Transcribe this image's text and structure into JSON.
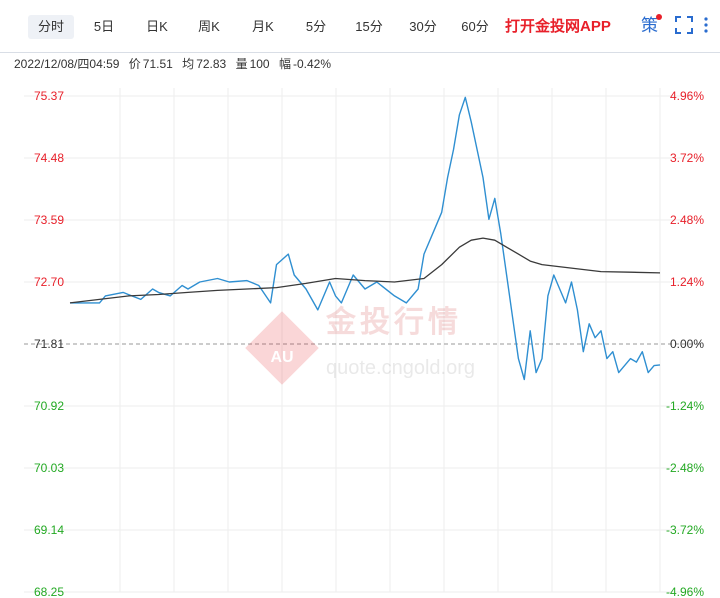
{
  "toolbar": {
    "tabs": [
      {
        "label": "分时",
        "active": true
      },
      {
        "label": "5日",
        "active": false
      },
      {
        "label": "日K",
        "active": false
      },
      {
        "label": "周K",
        "active": false
      },
      {
        "label": "月K",
        "active": false
      },
      {
        "label": "5分",
        "active": false
      },
      {
        "label": "15分",
        "active": false
      },
      {
        "label": "30分",
        "active": false
      },
      {
        "label": "60分",
        "active": false
      }
    ],
    "promo_label": "打开金投网APP",
    "strategy_icon_glyph": "策",
    "icons": [
      "strategy-icon",
      "fullscreen-icon",
      "more-icon"
    ],
    "accent_color": "#2a6ccf",
    "promo_color": "#e8202a"
  },
  "info_bar": {
    "datetime": "2022/12/08/四04:59",
    "price_label": "价",
    "price": "71.51",
    "avg_label": "均",
    "avg": "72.83",
    "volume_label": "量",
    "volume": "100",
    "change_label": "幅",
    "change": "-0.42%"
  },
  "watermark": {
    "brand": "金投行情",
    "url": "quote.cngold.org",
    "logo_text": "AU"
  },
  "chart_data": {
    "type": "line",
    "title": "",
    "left_axis_ticks": [
      "75.37",
      "74.48",
      "73.59",
      "72.70",
      "71.81",
      "70.92",
      "70.03",
      "69.14",
      "68.25"
    ],
    "right_axis_ticks": [
      "4.96%",
      "3.72%",
      "2.48%",
      "1.24%",
      "0.00%",
      "-1.24%",
      "-2.48%",
      "-3.72%",
      "-4.96%"
    ],
    "ylim": [
      68.25,
      75.37
    ],
    "reference_price": 71.81,
    "up_color": "#e8202a",
    "down_color": "#23a923",
    "series": [
      {
        "role": "price",
        "color": "#2f8fd1",
        "x": [
          0,
          0.05,
          0.06,
          0.09,
          0.12,
          0.14,
          0.15,
          0.17,
          0.19,
          0.2,
          0.22,
          0.25,
          0.27,
          0.3,
          0.32,
          0.34,
          0.35,
          0.37,
          0.38,
          0.4,
          0.42,
          0.44,
          0.45,
          0.46,
          0.48,
          0.5,
          0.52,
          0.55,
          0.57,
          0.59,
          0.6,
          0.62,
          0.63,
          0.64,
          0.65,
          0.66,
          0.67,
          0.68,
          0.69,
          0.7,
          0.71,
          0.72,
          0.73,
          0.74,
          0.75,
          0.76,
          0.77,
          0.78,
          0.79,
          0.8,
          0.81,
          0.82,
          0.83,
          0.84,
          0.85,
          0.86,
          0.87,
          0.88,
          0.89,
          0.9,
          0.91,
          0.92,
          0.93,
          0.94,
          0.95,
          0.96,
          0.97,
          0.98,
          0.99,
          1.0
        ],
        "values": [
          72.4,
          72.4,
          72.5,
          72.55,
          72.45,
          72.6,
          72.55,
          72.5,
          72.65,
          72.6,
          72.7,
          72.75,
          72.7,
          72.72,
          72.65,
          72.4,
          72.95,
          73.1,
          72.8,
          72.6,
          72.3,
          72.7,
          72.5,
          72.4,
          72.8,
          72.6,
          72.7,
          72.5,
          72.4,
          72.6,
          73.1,
          73.5,
          73.7,
          74.2,
          74.6,
          75.1,
          75.35,
          75.0,
          74.6,
          74.2,
          73.6,
          73.9,
          73.4,
          72.8,
          72.2,
          71.6,
          71.3,
          72.0,
          71.4,
          71.6,
          72.5,
          72.8,
          72.6,
          72.4,
          72.7,
          72.3,
          71.7,
          72.1,
          71.9,
          72.0,
          71.6,
          71.7,
          71.4,
          71.5,
          71.6,
          71.55,
          71.7,
          71.4,
          71.5,
          71.51
        ]
      },
      {
        "role": "average",
        "color": "#3a3a3a",
        "x": [
          0,
          0.05,
          0.1,
          0.15,
          0.2,
          0.25,
          0.3,
          0.35,
          0.4,
          0.45,
          0.5,
          0.55,
          0.6,
          0.63,
          0.66,
          0.68,
          0.7,
          0.72,
          0.74,
          0.76,
          0.78,
          0.8,
          0.85,
          0.9,
          0.95,
          1.0
        ],
        "values": [
          72.4,
          72.45,
          72.5,
          72.52,
          72.55,
          72.58,
          72.6,
          72.62,
          72.68,
          72.75,
          72.72,
          72.7,
          72.75,
          72.95,
          73.2,
          73.3,
          73.33,
          73.3,
          73.2,
          73.1,
          73.0,
          72.95,
          72.9,
          72.85,
          72.84,
          72.83
        ]
      }
    ]
  }
}
